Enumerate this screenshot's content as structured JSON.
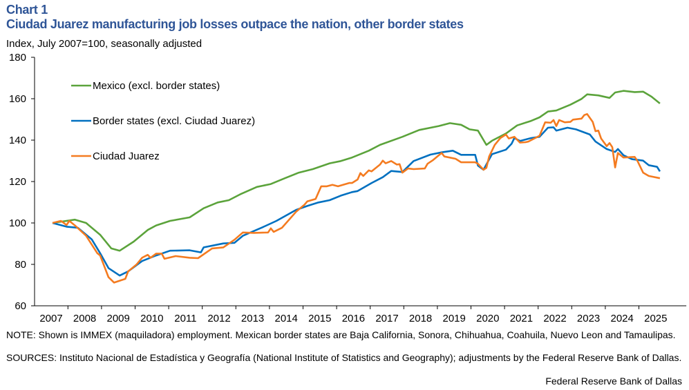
{
  "header": {
    "chart_label": "Chart 1",
    "title": "Ciudad Juarez manufacturing job losses outpace the nation, other border states",
    "subtitle": "Index,  July 2007=100, seasonally  adjusted"
  },
  "footer": {
    "note": "NOTE: Shown is IMMEX  (maquiladora) employment. Mexican border states are Baja California, Sonora, Chihuahua, Coahuila, Nuevo Leon and Tamaulipas.",
    "sources": "SOURCES: Instituto Nacional de Estadística y Geografía (National Institute of Statistics and Geography); adjustments by the Federal Reserve Bank of Dallas.",
    "credit": "Federal Reserve Bank of Dallas"
  },
  "chart_data": {
    "type": "line",
    "title": "Ciudad Juarez manufacturing job losses outpace the nation, other border states",
    "ylabel": "Index,  July 2007=100, seasonally  adjusted",
    "xlabel": "",
    "ylim": [
      60,
      180
    ],
    "yticks": [
      "60",
      "80",
      "100",
      "120",
      "140",
      "160",
      "180"
    ],
    "xticks": [
      "2007",
      "2008",
      "2009",
      "2010",
      "2011",
      "2012",
      "2013",
      "2014",
      "2015",
      "2016",
      "2017",
      "2018",
      "2019",
      "2020",
      "2021",
      "2022",
      "2023",
      "2024",
      "2025"
    ],
    "grid": false,
    "legend": "top-left",
    "series": [
      {
        "name": "Mexico (excl. border states)",
        "color": "#5BA33B",
        "points": [
          [
            "2007-07",
            100
          ],
          [
            "2008-03",
            101.6
          ],
          [
            "2008-07",
            100
          ],
          [
            "2008-12",
            94.3
          ],
          [
            "2009-04",
            87.7
          ],
          [
            "2009-07",
            86.6
          ],
          [
            "2009-12",
            91
          ],
          [
            "2010-05",
            96.6
          ],
          [
            "2010-08",
            98.8
          ],
          [
            "2011-01",
            101
          ],
          [
            "2011-08",
            102.7
          ],
          [
            "2012-01",
            107.1
          ],
          [
            "2012-06",
            109.9
          ],
          [
            "2012-10",
            111
          ],
          [
            "2013-02",
            113.8
          ],
          [
            "2013-08",
            117.4
          ],
          [
            "2014-01",
            118.8
          ],
          [
            "2014-06",
            121.6
          ],
          [
            "2014-11",
            124.3
          ],
          [
            "2015-04",
            126
          ],
          [
            "2015-10",
            128.8
          ],
          [
            "2016-02",
            129.9
          ],
          [
            "2016-06",
            131.6
          ],
          [
            "2016-12",
            134.9
          ],
          [
            "2017-04",
            137.7
          ],
          [
            "2017-12",
            141.6
          ],
          [
            "2018-06",
            144.9
          ],
          [
            "2019-01",
            146.8
          ],
          [
            "2019-05",
            148.2
          ],
          [
            "2019-09",
            147.4
          ],
          [
            "2019-12",
            145.2
          ],
          [
            "2020-03",
            144.6
          ],
          [
            "2020-06",
            137.7
          ],
          [
            "2020-08",
            139.7
          ],
          [
            "2021-01",
            143.2
          ],
          [
            "2021-05",
            147.1
          ],
          [
            "2021-10",
            149.3
          ],
          [
            "2022-01",
            151
          ],
          [
            "2022-04",
            153.8
          ],
          [
            "2022-07",
            154.3
          ],
          [
            "2022-12",
            157.1
          ],
          [
            "2023-04",
            159.9
          ],
          [
            "2023-06",
            162.1
          ],
          [
            "2023-10",
            161.6
          ],
          [
            "2024-02",
            160.4
          ],
          [
            "2024-04",
            163
          ],
          [
            "2024-07",
            163.8
          ],
          [
            "2024-11",
            163.2
          ],
          [
            "2025-02",
            163.4
          ],
          [
            "2025-05",
            161
          ],
          [
            "2025-08",
            157.7
          ]
        ]
      },
      {
        "name": "Border states (excl. Ciudad Juarez)",
        "color": "#0070C0",
        "points": [
          [
            "2007-07",
            100
          ],
          [
            "2007-12",
            98.2
          ],
          [
            "2008-04",
            97.7
          ],
          [
            "2008-09",
            92.1
          ],
          [
            "2008-12",
            85.4
          ],
          [
            "2009-03",
            78.2
          ],
          [
            "2009-07",
            74.6
          ],
          [
            "2009-10",
            76.6
          ],
          [
            "2010-03",
            81.6
          ],
          [
            "2010-08",
            84.3
          ],
          [
            "2011-01",
            86.6
          ],
          [
            "2011-08",
            86.8
          ],
          [
            "2011-12",
            85.8
          ],
          [
            "2012-01",
            88.2
          ],
          [
            "2012-08",
            90.1
          ],
          [
            "2012-12",
            90.4
          ],
          [
            "2013-03",
            93.8
          ],
          [
            "2013-10",
            97.9
          ],
          [
            "2014-03",
            101
          ],
          [
            "2014-10",
            106.3
          ],
          [
            "2015-02",
            108.2
          ],
          [
            "2015-06",
            109.9
          ],
          [
            "2015-10",
            111
          ],
          [
            "2016-02",
            113.2
          ],
          [
            "2016-06",
            114.9
          ],
          [
            "2016-08",
            115.4
          ],
          [
            "2017-01",
            119.3
          ],
          [
            "2017-05",
            122.1
          ],
          [
            "2017-08",
            125.1
          ],
          [
            "2017-12",
            124.6
          ],
          [
            "2018-04",
            129.9
          ],
          [
            "2018-10",
            133
          ],
          [
            "2019-02",
            134.1
          ],
          [
            "2019-06",
            134.9
          ],
          [
            "2019-09",
            132.9
          ],
          [
            "2020-02",
            132.9
          ],
          [
            "2020-03",
            127.7
          ],
          [
            "2020-05",
            125.7
          ],
          [
            "2020-08",
            133.2
          ],
          [
            "2021-01",
            135.4
          ],
          [
            "2021-03",
            138.2
          ],
          [
            "2021-04",
            141
          ],
          [
            "2021-06",
            139.6
          ],
          [
            "2021-10",
            141
          ],
          [
            "2022-01",
            141.6
          ],
          [
            "2022-04",
            146
          ],
          [
            "2022-06",
            146.2
          ],
          [
            "2022-07",
            144.6
          ],
          [
            "2022-11",
            146
          ],
          [
            "2023-02",
            145.2
          ],
          [
            "2023-07",
            142.7
          ],
          [
            "2023-09",
            139.3
          ],
          [
            "2024-01",
            135.7
          ],
          [
            "2024-04",
            134.3
          ],
          [
            "2024-05",
            135.7
          ],
          [
            "2024-07",
            132.7
          ],
          [
            "2024-10",
            130.8
          ],
          [
            "2025-02",
            130.1
          ],
          [
            "2025-04",
            127.9
          ],
          [
            "2025-07",
            127.1
          ],
          [
            "2025-08",
            124.9
          ]
        ]
      },
      {
        "name": "Ciudad Juarez",
        "color": "#F47B20",
        "points": [
          [
            "2007-07",
            100
          ],
          [
            "2007-10",
            101
          ],
          [
            "2007-12",
            99
          ],
          [
            "2008-01",
            101
          ],
          [
            "2008-03",
            98.8
          ],
          [
            "2008-07",
            93.8
          ],
          [
            "2008-11",
            85.4
          ],
          [
            "2008-12",
            84.3
          ],
          [
            "2009-03",
            73.8
          ],
          [
            "2009-05",
            71.2
          ],
          [
            "2009-09",
            73
          ],
          [
            "2009-10",
            76.6
          ],
          [
            "2010-01",
            79.9
          ],
          [
            "2010-03",
            83.2
          ],
          [
            "2010-05",
            84.6
          ],
          [
            "2010-06",
            83.2
          ],
          [
            "2010-08",
            85.2
          ],
          [
            "2010-10",
            85.2
          ],
          [
            "2010-11",
            82.7
          ],
          [
            "2011-03",
            84
          ],
          [
            "2011-08",
            83.2
          ],
          [
            "2011-11",
            83
          ],
          [
            "2012-04",
            87.7
          ],
          [
            "2012-08",
            88.2
          ],
          [
            "2012-12",
            91.9
          ],
          [
            "2013-03",
            95.4
          ],
          [
            "2013-07",
            95.2
          ],
          [
            "2013-12",
            95.4
          ],
          [
            "2014-01",
            97.4
          ],
          [
            "2014-02",
            95.7
          ],
          [
            "2014-05",
            97.7
          ],
          [
            "2014-10",
            105.4
          ],
          [
            "2015-01",
            108.8
          ],
          [
            "2015-02",
            110.4
          ],
          [
            "2015-05",
            111.6
          ],
          [
            "2015-07",
            117.7
          ],
          [
            "2015-09",
            117.7
          ],
          [
            "2015-11",
            118.4
          ],
          [
            "2016-01",
            117.7
          ],
          [
            "2016-05",
            119.3
          ],
          [
            "2016-06",
            119.3
          ],
          [
            "2016-08",
            121
          ],
          [
            "2016-09",
            124.1
          ],
          [
            "2016-10",
            122.7
          ],
          [
            "2016-12",
            125.4
          ],
          [
            "2017-01",
            124.9
          ],
          [
            "2017-04",
            128.2
          ],
          [
            "2017-05",
            130.1
          ],
          [
            "2017-06",
            128.8
          ],
          [
            "2017-08",
            129.9
          ],
          [
            "2017-10",
            128.2
          ],
          [
            "2017-11",
            128.4
          ],
          [
            "2017-12",
            124.3
          ],
          [
            "2018-02",
            126.3
          ],
          [
            "2018-04",
            126
          ],
          [
            "2018-08",
            126.3
          ],
          [
            "2018-09",
            128.6
          ],
          [
            "2018-11",
            130.4
          ],
          [
            "2019-02",
            133.8
          ],
          [
            "2019-03",
            132.1
          ],
          [
            "2019-07",
            131
          ],
          [
            "2019-09",
            129.3
          ],
          [
            "2020-02",
            129.3
          ],
          [
            "2020-03",
            128.6
          ],
          [
            "2020-05",
            125.7
          ],
          [
            "2020-06",
            126.6
          ],
          [
            "2020-07",
            132.1
          ],
          [
            "2020-09",
            137.7
          ],
          [
            "2020-11",
            141
          ],
          [
            "2021-01",
            142.7
          ],
          [
            "2021-02",
            140.8
          ],
          [
            "2021-04",
            141.6
          ],
          [
            "2021-06",
            138.8
          ],
          [
            "2021-08",
            139
          ],
          [
            "2021-09",
            139.3
          ],
          [
            "2022-01",
            142.1
          ],
          [
            "2022-03",
            148.6
          ],
          [
            "2022-05",
            148.4
          ],
          [
            "2022-06",
            149.7
          ],
          [
            "2022-07",
            146.8
          ],
          [
            "2022-08",
            149.7
          ],
          [
            "2022-10",
            148.6
          ],
          [
            "2022-12",
            148.8
          ],
          [
            "2023-01",
            149.9
          ],
          [
            "2023-04",
            150.4
          ],
          [
            "2023-05",
            152.1
          ],
          [
            "2023-06",
            152.6
          ],
          [
            "2023-08",
            148.8
          ],
          [
            "2023-09",
            144.3
          ],
          [
            "2023-10",
            144.6
          ],
          [
            "2023-11",
            140.8
          ],
          [
            "2024-01",
            137.1
          ],
          [
            "2024-02",
            138.6
          ],
          [
            "2024-03",
            136.6
          ],
          [
            "2024-04",
            126.8
          ],
          [
            "2024-05",
            133.8
          ],
          [
            "2024-07",
            131.6
          ],
          [
            "2024-11",
            131.9
          ],
          [
            "2024-12",
            129.9
          ],
          [
            "2025-02",
            124.3
          ],
          [
            "2025-04",
            122.7
          ],
          [
            "2025-08",
            121.6
          ]
        ]
      }
    ]
  }
}
